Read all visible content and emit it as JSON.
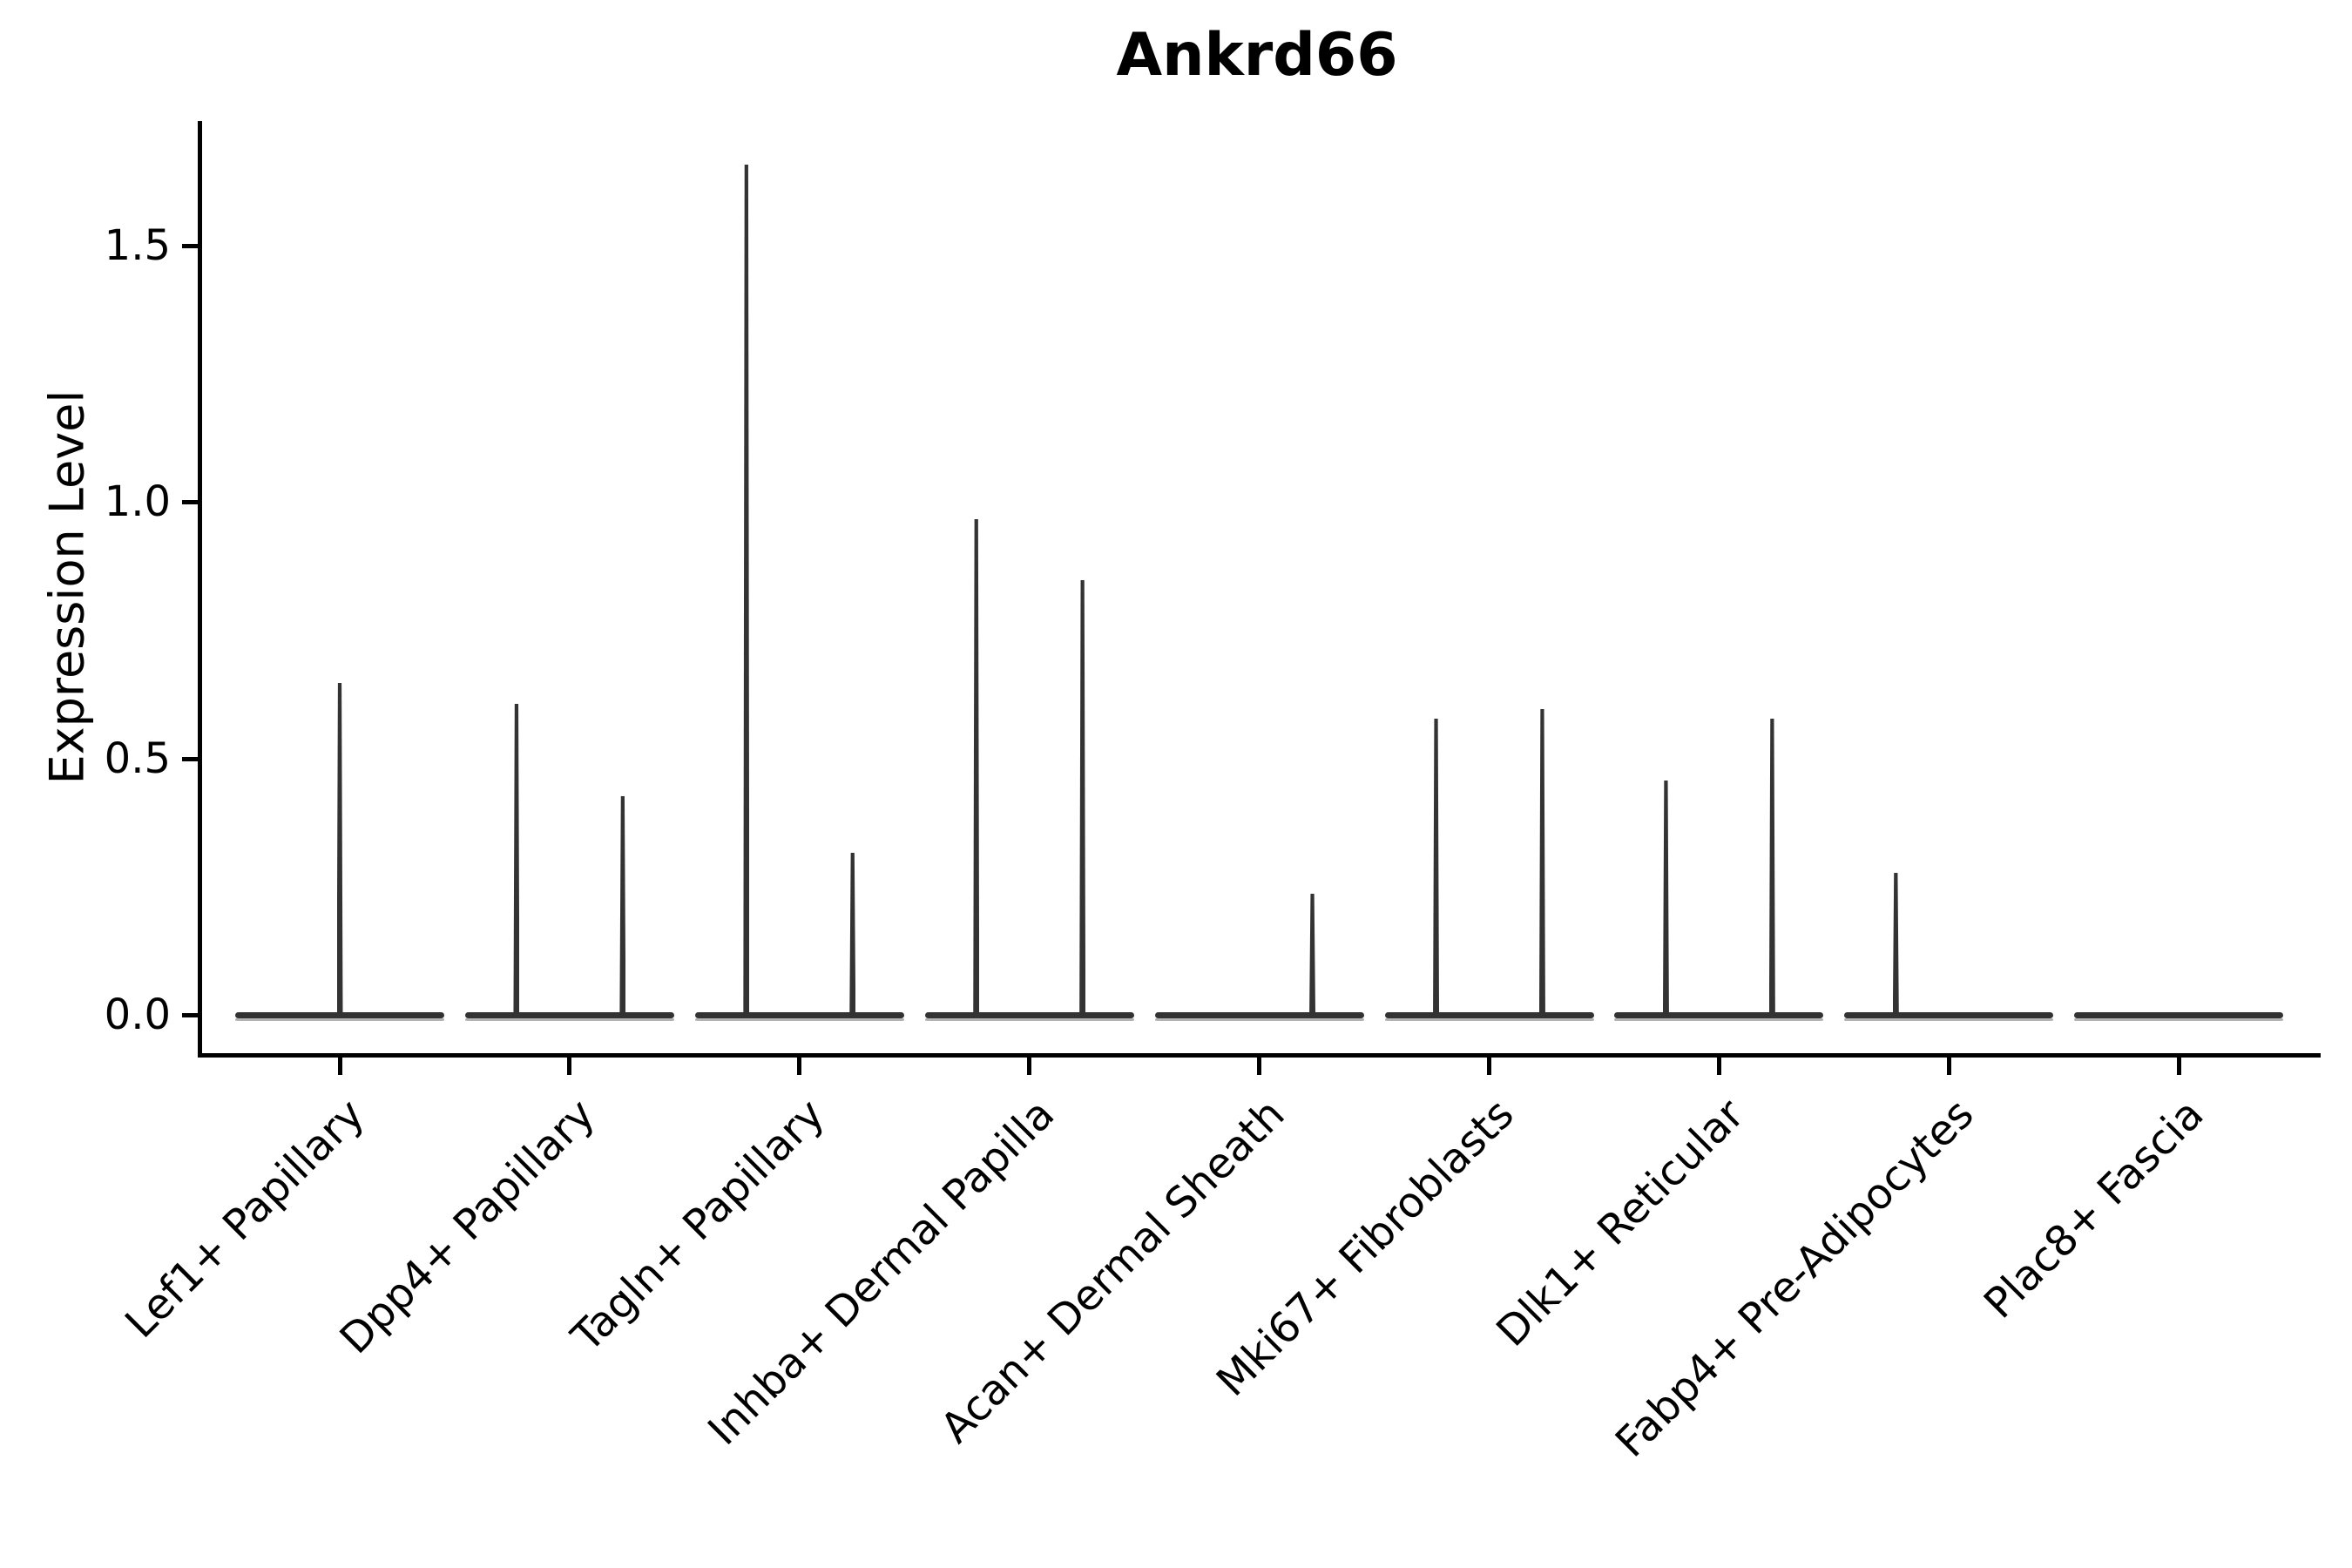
{
  "title": "Ankrd66",
  "chart_data": {
    "type": "violin",
    "title": "Ankrd66",
    "xlabel": "",
    "ylabel": "Expression Level",
    "yticks": [
      0.0,
      0.5,
      1.0,
      1.5
    ],
    "ytick_labels": [
      "0.0",
      "0.5",
      "1.0",
      "1.5"
    ],
    "ylim": [
      -0.07,
      1.74
    ],
    "grid": false,
    "legend_position": "none",
    "x_tick_rotation_deg": 45,
    "description": "Violin plot of Ankrd66 expression; most cells at 0 so violins collapse to flat baselines with narrow density spikes reaching the listed peak expression values.",
    "categories": [
      "Lef1+ Papillary",
      "Dpp4+ Papillary",
      "Tagln+ Papillary",
      "Inhba+ Dermal Papilla",
      "Acan+ Dermal Sheath",
      "Mki67+ Fibroblasts",
      "Dlk1+ Reticular",
      "Fabp4+ Pre-Adipocytes",
      "Plac8+ Fascia"
    ],
    "series": [
      {
        "category": "Lef1+ Papillary",
        "baseline_expression": 0.0,
        "spikes": [
          {
            "offset_frac": 0.0,
            "peak_expression": 0.65
          }
        ]
      },
      {
        "category": "Dpp4+ Papillary",
        "baseline_expression": 0.0,
        "spikes": [
          {
            "offset_frac": -0.231,
            "peak_expression": 0.61
          },
          {
            "offset_frac": 0.231,
            "peak_expression": 0.43
          }
        ]
      },
      {
        "category": "Tagln+ Papillary",
        "baseline_expression": 0.0,
        "spikes": [
          {
            "offset_frac": -0.231,
            "peak_expression": 1.66
          },
          {
            "offset_frac": 0.231,
            "peak_expression": 0.32
          }
        ]
      },
      {
        "category": "Inhba+ Dermal Papilla",
        "baseline_expression": 0.0,
        "spikes": [
          {
            "offset_frac": -0.231,
            "peak_expression": 0.97
          },
          {
            "offset_frac": 0.231,
            "peak_expression": 0.85
          }
        ]
      },
      {
        "category": "Acan+ Dermal Sheath",
        "baseline_expression": 0.0,
        "spikes": [
          {
            "offset_frac": 0.231,
            "peak_expression": 0.24
          }
        ]
      },
      {
        "category": "Mki67+ Fibroblasts",
        "baseline_expression": 0.0,
        "spikes": [
          {
            "offset_frac": -0.231,
            "peak_expression": 0.58
          },
          {
            "offset_frac": 0.231,
            "peak_expression": 0.6
          }
        ]
      },
      {
        "category": "Dlk1+ Reticular",
        "baseline_expression": 0.0,
        "spikes": [
          {
            "offset_frac": -0.231,
            "peak_expression": 0.46
          },
          {
            "offset_frac": 0.231,
            "peak_expression": 0.58
          }
        ]
      },
      {
        "category": "Fabp4+ Pre-Adipocytes",
        "baseline_expression": 0.0,
        "spikes": [
          {
            "offset_frac": -0.231,
            "peak_expression": 0.28
          }
        ]
      },
      {
        "category": "Plac8+ Fascia",
        "baseline_expression": 0.0,
        "spikes": []
      }
    ],
    "colors": {
      "violin": "#333333",
      "violin_shadow": "#9a9a9a",
      "axis": "#000000",
      "text": "#000000",
      "background": "#ffffff"
    }
  }
}
